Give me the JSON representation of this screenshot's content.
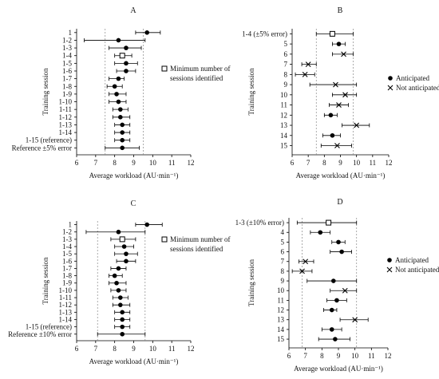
{
  "chart_data": [
    {
      "type": "scatter",
      "panel": "A",
      "title": "A",
      "xlabel": "Average workload (AU·min⁻¹)",
      "ylabel": "Training session",
      "xlim": [
        6,
        12
      ],
      "xticks": [
        6,
        7,
        8,
        9,
        10,
        11,
        12
      ],
      "ref_lines": [
        7.5,
        9.5
      ],
      "categories": [
        "1",
        "1-2",
        "1-3",
        "1-4",
        "1-5",
        "1-6",
        "1-7",
        "1-8",
        "1-9",
        "1-10",
        "1-11",
        "1-12",
        "1-13",
        "1-14",
        "1-15 (reference)",
        "Reference ±5% error"
      ],
      "values": [
        9.7,
        8.2,
        8.6,
        8.4,
        8.6,
        8.6,
        8.2,
        8.0,
        8.1,
        8.2,
        8.3,
        8.3,
        8.4,
        8.4,
        8.4,
        8.4
      ],
      "err_low": [
        9.1,
        6.4,
        7.7,
        8.0,
        8.0,
        8.1,
        7.7,
        7.6,
        7.7,
        7.7,
        7.9,
        7.9,
        8.0,
        8.0,
        8.0,
        7.5
      ],
      "err_high": [
        10.4,
        9.6,
        9.4,
        8.9,
        9.2,
        9.1,
        8.5,
        8.4,
        8.6,
        8.6,
        8.7,
        8.8,
        8.8,
        8.8,
        8.8,
        9.3
      ],
      "markers": [
        "dot",
        "dot",
        "dot",
        "square",
        "dot",
        "dot",
        "dot",
        "dot",
        "dot",
        "dot",
        "dot",
        "dot",
        "dot",
        "dot",
        "dot",
        "dot"
      ],
      "legend": [
        {
          "marker": "square",
          "label": "Minimum number of"
        },
        {
          "marker": "none",
          "label": "sessions identified"
        }
      ],
      "legend_position": "right"
    },
    {
      "type": "scatter",
      "panel": "B",
      "title": "B",
      "xlabel": "Average workload (AU·min⁻¹)",
      "ylabel": "Training session",
      "xlim": [
        6,
        12
      ],
      "xticks": [
        6,
        7,
        8,
        9,
        10,
        11,
        12
      ],
      "ref_lines": [
        7.5,
        9.8
      ],
      "categories": [
        "1-4 (±5% error)",
        "5",
        "6",
        "7",
        "8",
        "9",
        "10",
        "11",
        "12",
        "13",
        "14",
        "15"
      ],
      "values": [
        8.5,
        8.9,
        9.2,
        7.0,
        6.8,
        8.7,
        9.3,
        8.9,
        8.4,
        10.0,
        8.5,
        8.8
      ],
      "err_low": [
        7.5,
        8.5,
        8.5,
        6.6,
        6.2,
        7.1,
        8.5,
        8.3,
        8.0,
        9.1,
        7.9,
        7.8
      ],
      "err_high": [
        9.8,
        9.3,
        9.8,
        7.5,
        7.4,
        10.0,
        10.0,
        9.5,
        8.8,
        10.8,
        9.0,
        9.7
      ],
      "markers": [
        "square",
        "dot",
        "cross",
        "cross",
        "cross",
        "cross",
        "cross",
        "cross",
        "dot",
        "cross",
        "dot",
        "cross"
      ],
      "legend": [
        {
          "marker": "dot",
          "label": "Anticipated"
        },
        {
          "marker": "cross",
          "label": "Not anticipated"
        }
      ],
      "legend_position": "right"
    },
    {
      "type": "scatter",
      "panel": "C",
      "title": "C",
      "xlabel": "Average workload (AU·min⁻¹)",
      "ylabel": "Training session",
      "xlim": [
        6,
        12
      ],
      "xticks": [
        6,
        7,
        8,
        9,
        10,
        11,
        12
      ],
      "ref_lines": [
        7.1,
        9.6
      ],
      "categories": [
        "1",
        "1-2",
        "1-3",
        "1-4",
        "1-5",
        "1-6",
        "1-7",
        "1-8",
        "1-9",
        "1-10",
        "1-11",
        "1-12",
        "1-13",
        "1-14",
        "1-15 (reference)",
        "Reference ±10% error"
      ],
      "values": [
        9.7,
        8.2,
        8.4,
        8.5,
        8.6,
        8.6,
        8.2,
        8.0,
        8.1,
        8.2,
        8.3,
        8.3,
        8.4,
        8.4,
        8.4,
        8.4
      ],
      "err_low": [
        9.1,
        6.5,
        7.8,
        8.0,
        8.0,
        8.1,
        7.8,
        7.7,
        7.7,
        7.8,
        7.9,
        7.9,
        8.0,
        8.0,
        8.0,
        7.1
      ],
      "err_high": [
        10.5,
        9.6,
        9.1,
        9.0,
        9.2,
        9.1,
        8.6,
        8.4,
        8.6,
        8.6,
        8.7,
        8.8,
        8.8,
        8.8,
        8.8,
        9.6
      ],
      "markers": [
        "dot",
        "dot",
        "square",
        "dot",
        "dot",
        "dot",
        "dot",
        "dot",
        "dot",
        "dot",
        "dot",
        "dot",
        "dot",
        "dot",
        "dot",
        "dot"
      ],
      "legend": [
        {
          "marker": "square",
          "label": "Minimum number of"
        },
        {
          "marker": "none",
          "label": "sessions identified"
        }
      ],
      "legend_position": "right"
    },
    {
      "type": "scatter",
      "panel": "D",
      "title": "D",
      "xlabel": "Average workload (AU·min⁻¹)",
      "ylabel": "Training session",
      "xlim": [
        6,
        12
      ],
      "xticks": [
        6,
        7,
        8,
        9,
        10,
        11,
        12
      ],
      "ref_lines": [
        6.8,
        10.1
      ],
      "categories": [
        "1-3 (±10% error)",
        "4",
        "5",
        "6",
        "7",
        "8",
        "9",
        "10",
        "11",
        "12",
        "13",
        "14",
        "15"
      ],
      "values": [
        8.4,
        7.9,
        9.0,
        9.2,
        7.0,
        6.8,
        8.7,
        9.4,
        8.9,
        8.6,
        10.0,
        8.6,
        8.8
      ],
      "err_low": [
        6.5,
        7.3,
        8.6,
        8.5,
        6.6,
        6.2,
        7.1,
        8.5,
        8.3,
        8.1,
        9.1,
        8.0,
        7.8
      ],
      "err_high": [
        10.1,
        8.5,
        9.4,
        9.8,
        7.5,
        7.4,
        10.1,
        10.1,
        9.5,
        8.9,
        10.8,
        9.2,
        9.7
      ],
      "markers": [
        "square",
        "dot",
        "dot",
        "dot",
        "cross",
        "cross",
        "dot",
        "cross",
        "dot",
        "dot",
        "cross",
        "dot",
        "dot"
      ],
      "legend": [
        {
          "marker": "dot",
          "label": "Anticipated"
        },
        {
          "marker": "cross",
          "label": "Not anticipated"
        }
      ],
      "legend_position": "right"
    }
  ]
}
